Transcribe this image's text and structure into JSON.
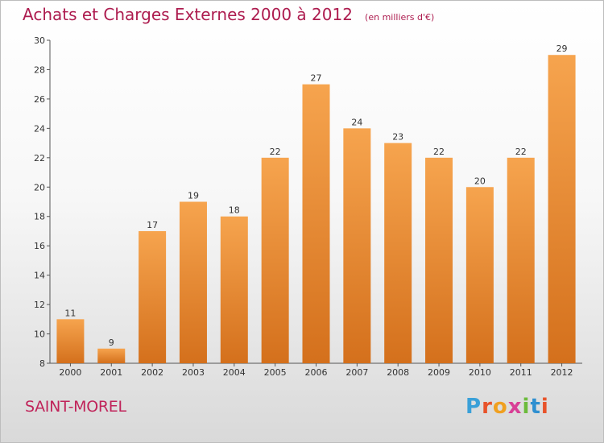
{
  "header": {
    "title": "Achats et Charges Externes 2000 à 2012",
    "subtitle": "(en milliers d'€)"
  },
  "footer": {
    "commune": "SAINT-MOREL",
    "logo_text": "Proxiti"
  },
  "colors": {
    "bar_top": "#f6a44e",
    "bar_bottom": "#d4701c",
    "title": "#ad1c4f"
  },
  "chart_data": {
    "type": "bar",
    "title": "Achats et Charges Externes 2000 à 2012",
    "subtitle": "(en milliers d'€)",
    "categories": [
      "2000",
      "2001",
      "2002",
      "2003",
      "2004",
      "2005",
      "2006",
      "2007",
      "2008",
      "2009",
      "2010",
      "2011",
      "2012"
    ],
    "values": [
      11,
      9,
      17,
      19,
      18,
      22,
      27,
      24,
      23,
      22,
      20,
      22,
      29
    ],
    "ylim": [
      8,
      30
    ],
    "yticks": [
      8,
      10,
      12,
      14,
      16,
      18,
      20,
      22,
      24,
      26,
      28,
      30
    ],
    "grid": false
  }
}
